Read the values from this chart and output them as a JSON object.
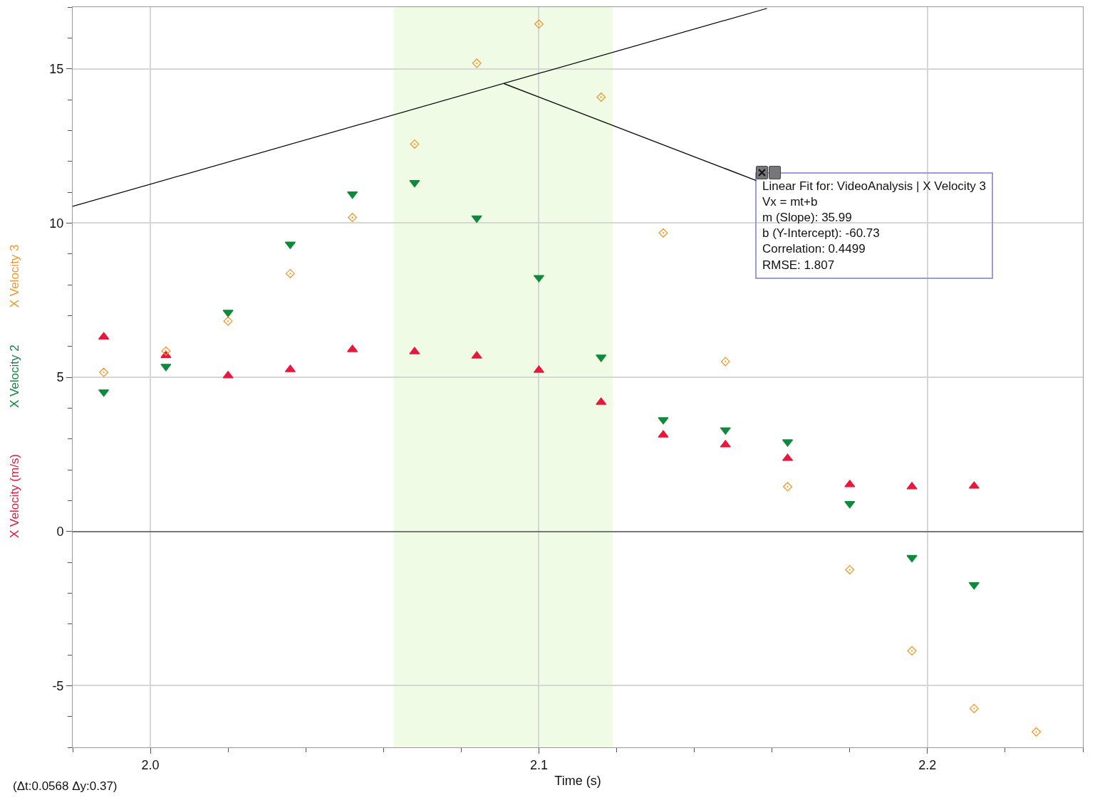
{
  "chart_data": {
    "type": "scatter",
    "xlabel": "Time (s)",
    "x": [
      1.988,
      2.004,
      2.02,
      2.036,
      2.052,
      2.068,
      2.084,
      2.1,
      2.116,
      2.132,
      2.148,
      2.164,
      2.18,
      2.196,
      2.212,
      2.228
    ],
    "series": [
      {
        "name": "X Velocity (m/s)",
        "color": "#e8173c",
        "marker": "triangle",
        "values": [
          6.31,
          5.71,
          5.05,
          5.25,
          5.9,
          5.83,
          5.69,
          5.23,
          4.19,
          3.13,
          2.81,
          2.37,
          1.52,
          1.45,
          1.47,
          null
        ]
      },
      {
        "name": "X Velocity 2",
        "color": "#0e8a3c",
        "marker": "triangle-down",
        "values": [
          4.52,
          5.35,
          7.1,
          9.31,
          10.94,
          11.31,
          10.16,
          8.23,
          5.65,
          3.62,
          3.29,
          2.9,
          0.9,
          -0.85,
          -1.73,
          null
        ]
      },
      {
        "name": "X Velocity 3",
        "color": "#f5962a",
        "marker": "diamond",
        "values": [
          5.16,
          5.85,
          6.82,
          8.36,
          10.18,
          12.56,
          15.18,
          16.45,
          14.08,
          9.68,
          5.51,
          1.45,
          -1.24,
          -3.87,
          -5.74,
          -6.5
        ]
      },
      {
        "type": "line",
        "color": "#000000",
        "marker": "none",
        "x": [
          1.98,
          2.1587
        ],
        "values": [
          10.54,
          16.96
        ]
      }
    ],
    "xlim": [
      1.98,
      2.24
    ],
    "xticks": [
      {
        "value": 1.98,
        "label": null
      },
      {
        "value": 2,
        "label": "2.0"
      },
      {
        "value": 2.02,
        "label": null
      },
      {
        "value": 2.04,
        "label": null
      },
      {
        "value": 2.06,
        "label": null
      },
      {
        "value": 2.08,
        "label": null
      },
      {
        "value": 2.1,
        "label": "2.1"
      },
      {
        "value": 2.12,
        "label": null
      },
      {
        "value": 2.14,
        "label": null
      },
      {
        "value": 2.16,
        "label": null
      },
      {
        "value": 2.18,
        "label": null
      },
      {
        "value": 2.2,
        "label": "2.2"
      },
      {
        "value": 2.22,
        "label": null
      },
      {
        "value": 2.24,
        "label": null
      }
    ],
    "ylim": [
      -7,
      17
    ],
    "yticks": [
      {
        "value": -7,
        "label": null
      },
      {
        "value": -6,
        "label": null
      },
      -5,
      {
        "value": -4,
        "label": null
      },
      {
        "value": -3,
        "label": null
      },
      {
        "value": -2,
        "label": null
      },
      {
        "value": -1,
        "label": null
      },
      0,
      {
        "value": 1,
        "label": null
      },
      {
        "value": 2,
        "label": null
      },
      {
        "value": 3,
        "label": null
      },
      {
        "value": 4,
        "label": null
      },
      5,
      {
        "value": 6,
        "label": null
      },
      {
        "value": 7,
        "label": null
      },
      {
        "value": 8,
        "label": null
      },
      {
        "value": 9,
        "label": null
      },
      10,
      {
        "value": 11,
        "label": null
      },
      {
        "value": 12,
        "label": null
      },
      {
        "value": 13,
        "label": null
      },
      {
        "value": 14,
        "label": null
      },
      15,
      {
        "value": 16,
        "label": null
      },
      {
        "value": 17,
        "label": null
      }
    ],
    "grid": true,
    "legend": false,
    "bands": [
      {
        "axis": "x",
        "from": 2.0626,
        "to": 2.119,
        "color": "#effbe4"
      }
    ],
    "annotations": [
      {
        "text": "Linear Fit for: VideoAnalysis | X Velocity 3\nVx = mt+b\nm (Slope): 35.99\nb (Y-Intercept): -60.73\nCorrelation: 0.4499\nRMSE: 1.807",
        "x": 2.091,
        "y": 14.52
      },
      "(Δt:0.0568 Δy:0.37)"
    ]
  }
}
